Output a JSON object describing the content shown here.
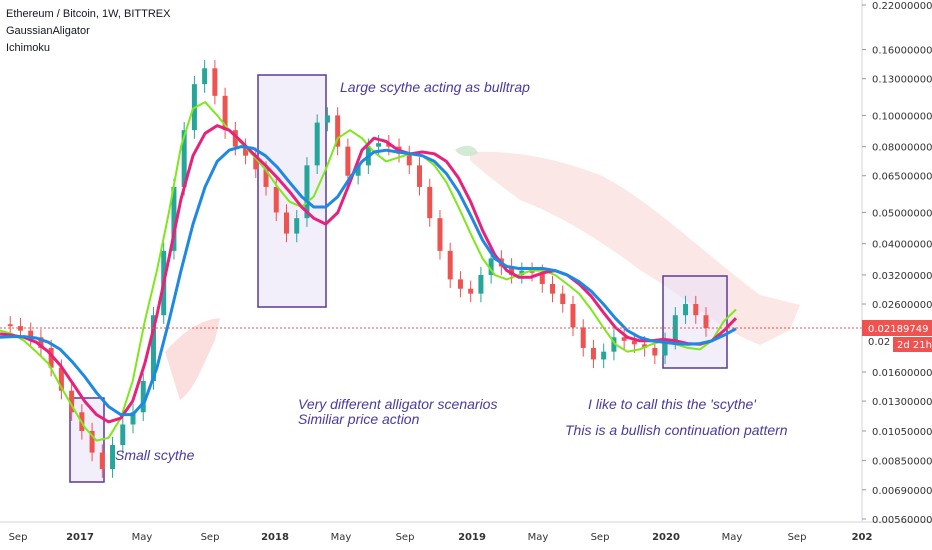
{
  "legend": {
    "symbol": "Ethereum / Bitcoin, 1W, BITTREX",
    "indicator1": "GaussianAligator",
    "indicator2": "Ichimoku"
  },
  "colors": {
    "up_candle": "#26a69a",
    "down_candle": "#ef5350",
    "alligator_fast": "#7ee81b",
    "alligator_mid": "#e8217a",
    "alligator_slow": "#1e88e5",
    "cloud_bear": "#f8c9c9",
    "cloud_bull": "#c8e6c9",
    "box_fill": "#e9e3f7",
    "box_stroke": "#5b3a96",
    "annotation": "#4a3aa0",
    "price_tag": "#ef5350"
  },
  "price_tags": {
    "current": "0.02189749",
    "countdown": "2d 21h",
    "partial": "0.02"
  },
  "annotations": {
    "small": "Small scythe",
    "large": "Large scythe acting as bulltrap",
    "center1": "Very different alligator scenarios",
    "center2": "Similiar price action",
    "right1": "I like to call this the 'scythe'",
    "right2": "This is a bullish continuation pattern"
  },
  "chart_data": {
    "type": "line",
    "title": "Ethereum / Bitcoin, 1W, BITTREX",
    "y_scale": "log",
    "x_ticks": [
      "Sep",
      "2017",
      "May",
      "Sep",
      "2018",
      "May",
      "Sep",
      "2019",
      "May",
      "Sep",
      "2020",
      "May",
      "Sep",
      "202"
    ],
    "y_ticks": [
      "0.22000000",
      "0.16000000",
      "0.13000000",
      "0.10000000",
      "0.08000000",
      "0.06500000",
      "0.05000000",
      "0.04000000",
      "0.03200000",
      "0.02600000",
      "0.01600000",
      "0.01300000",
      "0.01050000",
      "0.00850000",
      "0.00690000",
      "0.00560000"
    ],
    "series": [
      {
        "name": "price",
        "y": [
          0.0225,
          0.0222,
          0.0215,
          0.0205,
          0.019,
          0.0165,
          0.014,
          0.012,
          0.0105,
          0.009,
          0.008,
          0.0095,
          0.011,
          0.012,
          0.015,
          0.024,
          0.038,
          0.06,
          0.09,
          0.125,
          0.14,
          0.115,
          0.09,
          0.08,
          0.075,
          0.068,
          0.06,
          0.05,
          0.043,
          0.048,
          0.07,
          0.095,
          0.1,
          0.08,
          0.065,
          0.07,
          0.08,
          0.082,
          0.08,
          0.076,
          0.07,
          0.06,
          0.048,
          0.038,
          0.031,
          0.029,
          0.028,
          0.032,
          0.036,
          0.034,
          0.032,
          0.033,
          0.0325,
          0.03,
          0.028,
          0.026,
          0.022,
          0.019,
          0.0175,
          0.0185,
          0.0205,
          0.02,
          0.0195,
          0.019,
          0.018,
          0.02,
          0.024,
          0.026,
          0.024,
          0.0219
        ]
      },
      {
        "name": "alligator_fast",
        "y": [
          0.0215,
          0.021,
          0.02,
          0.0185,
          0.017,
          0.0145,
          0.0125,
          0.0108,
          0.0098,
          0.01,
          0.0115,
          0.015,
          0.023,
          0.033,
          0.05,
          0.08,
          0.105,
          0.11,
          0.1,
          0.09,
          0.082,
          0.075,
          0.068,
          0.06,
          0.054,
          0.052,
          0.056,
          0.068,
          0.085,
          0.09,
          0.085,
          0.077,
          0.072,
          0.074,
          0.076,
          0.075,
          0.07,
          0.062,
          0.052,
          0.043,
          0.036,
          0.032,
          0.031,
          0.032,
          0.033,
          0.033,
          0.032,
          0.03,
          0.028,
          0.025,
          0.022,
          0.0195,
          0.0185,
          0.0188,
          0.0195,
          0.02,
          0.0195,
          0.019,
          0.0188,
          0.02,
          0.023,
          0.025
        ]
      },
      {
        "name": "alligator_mid",
        "y": [
          0.021,
          0.0208,
          0.0205,
          0.0198,
          0.0185,
          0.0168,
          0.0148,
          0.013,
          0.0118,
          0.0112,
          0.0115,
          0.013,
          0.017,
          0.024,
          0.036,
          0.055,
          0.075,
          0.088,
          0.093,
          0.09,
          0.083,
          0.076,
          0.07,
          0.064,
          0.058,
          0.052,
          0.048,
          0.046,
          0.05,
          0.062,
          0.078,
          0.085,
          0.083,
          0.078,
          0.076,
          0.077,
          0.076,
          0.072,
          0.064,
          0.054,
          0.044,
          0.037,
          0.033,
          0.0315,
          0.0315,
          0.0325,
          0.033,
          0.032,
          0.03,
          0.0275,
          0.0245,
          0.022,
          0.0205,
          0.02,
          0.02,
          0.0202,
          0.02,
          0.0196,
          0.0195,
          0.02,
          0.0215,
          0.0235
        ]
      },
      {
        "name": "alligator_slow",
        "y": [
          0.0205,
          0.0206,
          0.0206,
          0.0204,
          0.0198,
          0.0188,
          0.0172,
          0.0155,
          0.0138,
          0.0125,
          0.0118,
          0.0118,
          0.013,
          0.0165,
          0.023,
          0.033,
          0.046,
          0.06,
          0.072,
          0.078,
          0.08,
          0.079,
          0.075,
          0.069,
          0.062,
          0.056,
          0.052,
          0.052,
          0.056,
          0.064,
          0.072,
          0.077,
          0.078,
          0.077,
          0.076,
          0.075,
          0.072,
          0.066,
          0.058,
          0.049,
          0.041,
          0.036,
          0.034,
          0.0335,
          0.0335,
          0.0335,
          0.033,
          0.032,
          0.0305,
          0.0285,
          0.026,
          0.0235,
          0.0215,
          0.0205,
          0.02,
          0.0198,
          0.0196,
          0.0195,
          0.0196,
          0.02,
          0.0208,
          0.0218
        ]
      }
    ]
  }
}
